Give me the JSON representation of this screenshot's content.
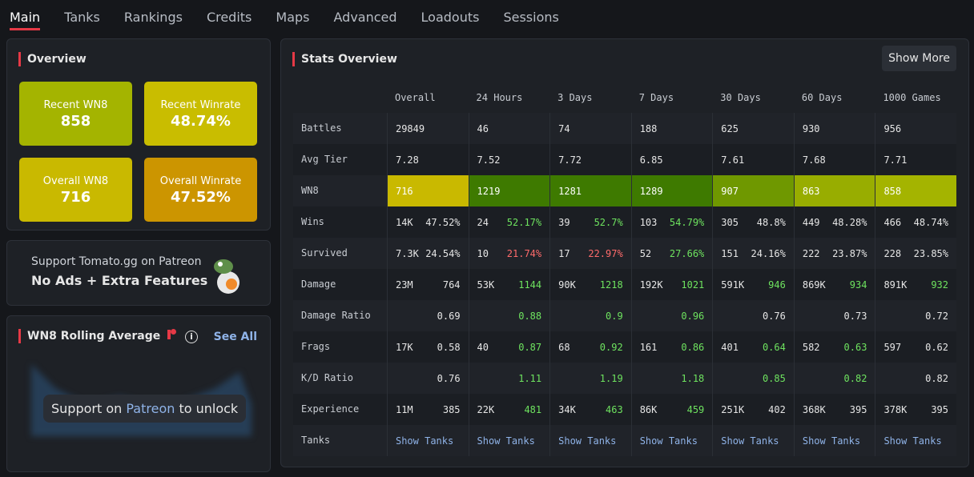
{
  "tabs": {
    "items": [
      "Main",
      "Tanks",
      "Rankings",
      "Credits",
      "Maps",
      "Advanced",
      "Loadouts",
      "Sessions"
    ],
    "active": 0
  },
  "overview": {
    "title": "Overview",
    "cards": [
      {
        "label": "Recent WN8",
        "value": "858",
        "color": "#a4b400"
      },
      {
        "label": "Recent Winrate",
        "value": "48.74%",
        "color": "#c9bd00"
      },
      {
        "label": "Overall WN8",
        "value": "716",
        "color": "#c9b900"
      },
      {
        "label": "Overall Winrate",
        "value": "47.52%",
        "color": "#cc9500"
      }
    ]
  },
  "patreon": {
    "line1": "Support Tomato.gg on Patreon",
    "line2": "No Ads + Extra Features"
  },
  "rolling": {
    "title": "WN8 Rolling Average",
    "link": "See All",
    "overlay": {
      "before": "Support on",
      "link": "Patreon",
      "after": "to unlock"
    }
  },
  "stats": {
    "title": "Stats Overview",
    "button": "Show More",
    "columns": [
      "Overall",
      "24 Hours",
      "3 Days",
      "7 Days",
      "30 Days",
      "60 Days",
      "1000 Games"
    ],
    "rows": [
      {
        "label": "Battles",
        "cells": [
          {
            "left": "29849"
          },
          {
            "left": "46"
          },
          {
            "left": "74"
          },
          {
            "left": "188"
          },
          {
            "left": "625"
          },
          {
            "left": "930"
          },
          {
            "left": "956"
          }
        ]
      },
      {
        "label": "Avg Tier",
        "cells": [
          {
            "left": "7.28"
          },
          {
            "left": "7.52"
          },
          {
            "left": "7.72"
          },
          {
            "left": "6.85"
          },
          {
            "left": "7.61"
          },
          {
            "left": "7.68"
          },
          {
            "left": "7.71"
          }
        ]
      },
      {
        "label": "WN8",
        "cells": [
          {
            "left": "716",
            "bg": "#c9b900"
          },
          {
            "left": "1219",
            "bg": "#3e7a00"
          },
          {
            "left": "1281",
            "bg": "#3e7a00"
          },
          {
            "left": "1289",
            "bg": "#3e7a00"
          },
          {
            "left": "907",
            "bg": "#6f9800"
          },
          {
            "left": "863",
            "bg": "#98ad00"
          },
          {
            "left": "858",
            "bg": "#a4b400"
          }
        ]
      },
      {
        "label": "Wins",
        "cells": [
          {
            "left": "14K",
            "right": "47.52%",
            "color": "#e6e6e6"
          },
          {
            "left": "24",
            "right": "52.17%",
            "color": "#6ee35f"
          },
          {
            "left": "39",
            "right": "52.7%",
            "color": "#6ee35f"
          },
          {
            "left": "103",
            "right": "54.79%",
            "color": "#6ee35f"
          },
          {
            "left": "305",
            "right": "48.8%",
            "color": "#e6e6e6"
          },
          {
            "left": "449",
            "right": "48.28%",
            "color": "#e6e6e6"
          },
          {
            "left": "466",
            "right": "48.74%",
            "color": "#e6e6e6"
          }
        ]
      },
      {
        "label": "Survived",
        "cells": [
          {
            "left": "7.3K",
            "right": "24.54%",
            "color": "#e6e6e6"
          },
          {
            "left": "10",
            "right": "21.74%",
            "color": "#ff6b6b"
          },
          {
            "left": "17",
            "right": "22.97%",
            "color": "#ff6b6b"
          },
          {
            "left": "52",
            "right": "27.66%",
            "color": "#6ee35f"
          },
          {
            "left": "151",
            "right": "24.16%",
            "color": "#e6e6e6"
          },
          {
            "left": "222",
            "right": "23.87%",
            "color": "#e6e6e6"
          },
          {
            "left": "228",
            "right": "23.85%",
            "color": "#e6e6e6"
          }
        ]
      },
      {
        "label": "Damage",
        "cells": [
          {
            "left": "23M",
            "right": "764",
            "color": "#e6e6e6"
          },
          {
            "left": "53K",
            "right": "1144",
            "color": "#6ee35f"
          },
          {
            "left": "90K",
            "right": "1218",
            "color": "#6ee35f"
          },
          {
            "left": "192K",
            "right": "1021",
            "color": "#6ee35f"
          },
          {
            "left": "591K",
            "right": "946",
            "color": "#6ee35f"
          },
          {
            "left": "869K",
            "right": "934",
            "color": "#6ee35f"
          },
          {
            "left": "891K",
            "right": "932",
            "color": "#6ee35f"
          }
        ]
      },
      {
        "label": "Damage Ratio",
        "cells": [
          {
            "right": "0.69",
            "color": "#e6e6e6"
          },
          {
            "right": "0.88",
            "color": "#6ee35f"
          },
          {
            "right": "0.9",
            "color": "#6ee35f"
          },
          {
            "right": "0.96",
            "color": "#6ee35f"
          },
          {
            "right": "0.76",
            "color": "#e6e6e6"
          },
          {
            "right": "0.73",
            "color": "#e6e6e6"
          },
          {
            "right": "0.72",
            "color": "#e6e6e6"
          }
        ]
      },
      {
        "label": "Frags",
        "cells": [
          {
            "left": "17K",
            "right": "0.58",
            "color": "#e6e6e6"
          },
          {
            "left": "40",
            "right": "0.87",
            "color": "#6ee35f"
          },
          {
            "left": "68",
            "right": "0.92",
            "color": "#6ee35f"
          },
          {
            "left": "161",
            "right": "0.86",
            "color": "#6ee35f"
          },
          {
            "left": "401",
            "right": "0.64",
            "color": "#6ee35f"
          },
          {
            "left": "582",
            "right": "0.63",
            "color": "#6ee35f"
          },
          {
            "left": "597",
            "right": "0.62",
            "color": "#e6e6e6"
          }
        ]
      },
      {
        "label": "K/D Ratio",
        "cells": [
          {
            "right": "0.76",
            "color": "#e6e6e6"
          },
          {
            "right": "1.11",
            "color": "#6ee35f"
          },
          {
            "right": "1.19",
            "color": "#6ee35f"
          },
          {
            "right": "1.18",
            "color": "#6ee35f"
          },
          {
            "right": "0.85",
            "color": "#6ee35f"
          },
          {
            "right": "0.82",
            "color": "#6ee35f"
          },
          {
            "right": "0.82",
            "color": "#e6e6e6"
          }
        ]
      },
      {
        "label": "Experience",
        "cells": [
          {
            "left": "11M",
            "right": "385",
            "color": "#e6e6e6"
          },
          {
            "left": "22K",
            "right": "481",
            "color": "#6ee35f"
          },
          {
            "left": "34K",
            "right": "463",
            "color": "#6ee35f"
          },
          {
            "left": "86K",
            "right": "459",
            "color": "#6ee35f"
          },
          {
            "left": "251K",
            "right": "402",
            "color": "#e6e6e6"
          },
          {
            "left": "368K",
            "right": "395",
            "color": "#e6e6e6"
          },
          {
            "left": "378K",
            "right": "395",
            "color": "#e6e6e6"
          }
        ]
      },
      {
        "label": "Tanks",
        "cells": [
          {
            "link": "Show Tanks"
          },
          {
            "link": "Show Tanks"
          },
          {
            "link": "Show Tanks"
          },
          {
            "link": "Show Tanks"
          },
          {
            "link": "Show Tanks"
          },
          {
            "link": "Show Tanks"
          },
          {
            "link": "Show Tanks"
          }
        ]
      }
    ]
  }
}
